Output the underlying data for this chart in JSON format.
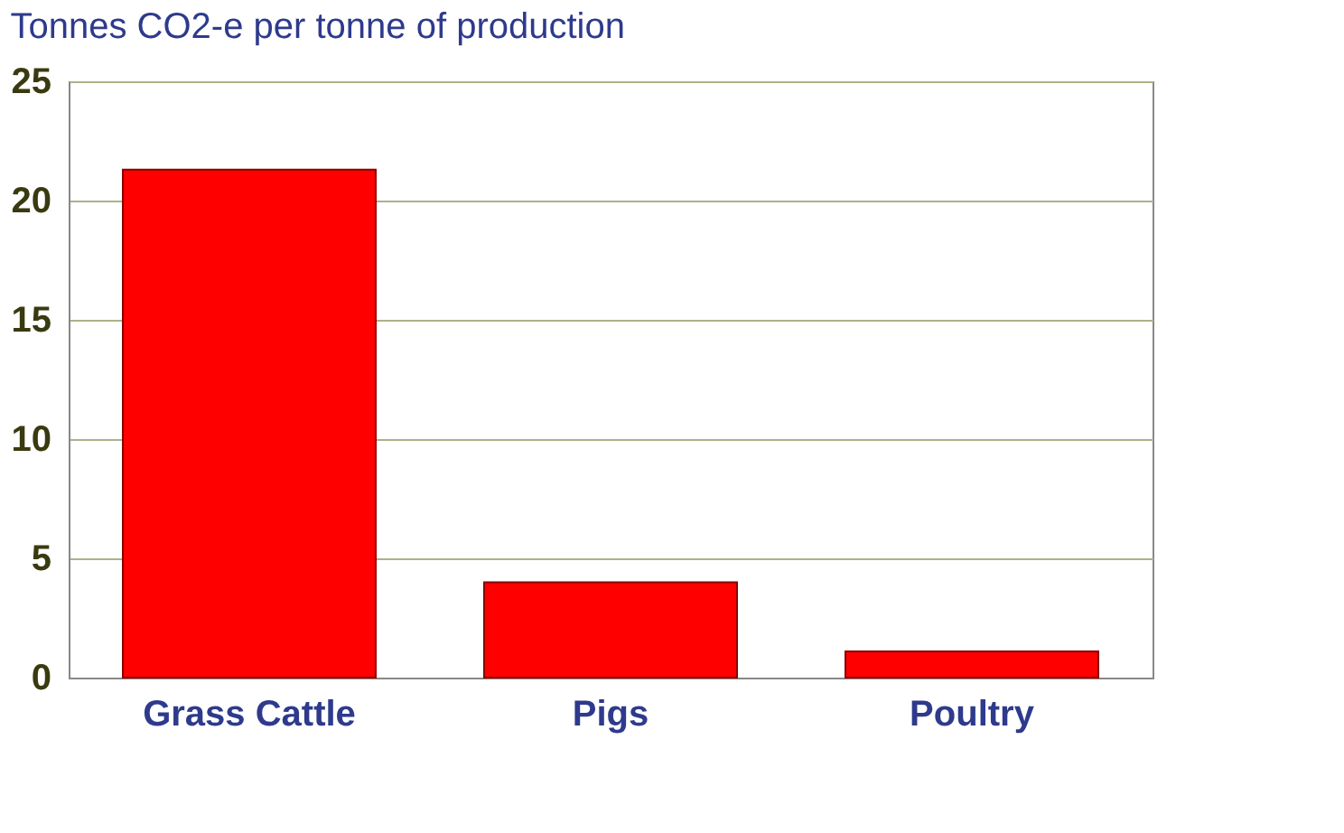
{
  "chart_data": {
    "type": "bar",
    "title": "Tonnes CO2-e per tonne of production",
    "categories": [
      "Grass Cattle",
      "Pigs",
      "Poultry"
    ],
    "values": [
      21.3,
      4.0,
      1.1
    ],
    "color": "#ff0000",
    "ylim": [
      0,
      25
    ],
    "yticks": [
      0,
      5,
      10,
      15,
      20,
      25
    ],
    "grid": "y"
  }
}
